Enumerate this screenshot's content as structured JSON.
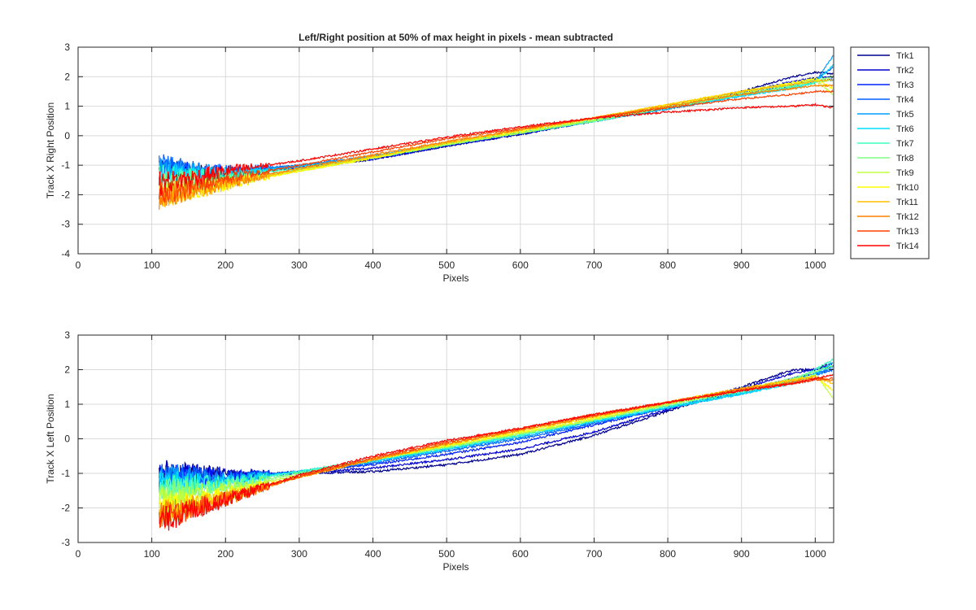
{
  "chart_data": [
    {
      "type": "line",
      "title": "Left/Right position at 50% of max height in pixels - mean subtracted",
      "xlabel": "Pixels",
      "ylabel": "Track X Right Position",
      "xlim": [
        0,
        1025
      ],
      "ylim": [
        -4,
        3
      ],
      "xticks": [
        0,
        100,
        200,
        300,
        400,
        500,
        600,
        700,
        800,
        900,
        1000
      ],
      "yticks": [
        -4,
        -3,
        -2,
        -1,
        0,
        1,
        2,
        3
      ],
      "grid": true,
      "legend": "outside-right",
      "x": [
        110,
        150,
        200,
        300,
        400,
        500,
        600,
        700,
        800,
        900,
        970,
        1000,
        1024
      ],
      "series": [
        {
          "name": "Trk1",
          "color": "#00008F",
          "values": [
            -1.2,
            -1.25,
            -1.25,
            -1.05,
            -0.8,
            -0.35,
            0.05,
            0.5,
            0.95,
            1.5,
            2.0,
            2.15,
            2.1
          ]
        },
        {
          "name": "Trk2",
          "color": "#0000CF",
          "values": [
            -1.2,
            -1.3,
            -1.3,
            -1.1,
            -0.8,
            -0.35,
            0.05,
            0.5,
            0.95,
            1.45,
            1.85,
            1.95,
            2.0
          ]
        },
        {
          "name": "Trk3",
          "color": "#0020FF",
          "values": [
            -1.1,
            -1.2,
            -1.25,
            -1.05,
            -0.75,
            -0.3,
            0.1,
            0.5,
            0.95,
            1.4,
            1.75,
            1.85,
            1.9
          ]
        },
        {
          "name": "Trk4",
          "color": "#0060FF",
          "values": [
            -1.0,
            -1.15,
            -1.2,
            -1.0,
            -0.7,
            -0.25,
            0.1,
            0.5,
            0.95,
            1.4,
            1.7,
            1.9,
            2.3
          ]
        },
        {
          "name": "Trk5",
          "color": "#00A0FF",
          "values": [
            -1.1,
            -1.2,
            -1.25,
            -1.0,
            -0.7,
            -0.25,
            0.1,
            0.5,
            0.9,
            1.35,
            1.65,
            1.8,
            2.7
          ]
        },
        {
          "name": "Trk6",
          "color": "#00E0FF",
          "values": [
            -1.3,
            -1.3,
            -1.3,
            -1.05,
            -0.75,
            -0.3,
            0.1,
            0.5,
            0.95,
            1.35,
            1.6,
            1.8,
            2.4
          ]
        },
        {
          "name": "Trk7",
          "color": "#40FFBF",
          "values": [
            -1.4,
            -1.4,
            -1.4,
            -1.1,
            -0.75,
            -0.3,
            0.1,
            0.5,
            0.95,
            1.4,
            1.65,
            1.8,
            1.9
          ]
        },
        {
          "name": "Trk8",
          "color": "#80FF80",
          "values": [
            -1.6,
            -1.5,
            -1.5,
            -1.15,
            -0.75,
            -0.3,
            0.1,
            0.5,
            0.95,
            1.4,
            1.7,
            1.85,
            2.0
          ]
        },
        {
          "name": "Trk9",
          "color": "#BFFF40",
          "values": [
            -1.9,
            -1.75,
            -1.6,
            -1.2,
            -0.75,
            -0.3,
            0.1,
            0.55,
            1.0,
            1.45,
            1.75,
            1.9,
            1.4
          ]
        },
        {
          "name": "Trk10",
          "color": "#FFFF00",
          "values": [
            -2.0,
            -1.85,
            -1.65,
            -1.2,
            -0.75,
            -0.25,
            0.15,
            0.6,
            1.05,
            1.5,
            1.8,
            1.95,
            1.6
          ]
        },
        {
          "name": "Trk11",
          "color": "#FFBF00",
          "values": [
            -2.1,
            -1.9,
            -1.65,
            -1.15,
            -0.7,
            -0.25,
            0.2,
            0.6,
            1.05,
            1.5,
            1.75,
            1.85,
            1.9
          ]
        },
        {
          "name": "Trk12",
          "color": "#FF8000",
          "values": [
            -2.1,
            -1.9,
            -1.6,
            -1.1,
            -0.65,
            -0.2,
            0.2,
            0.6,
            1.0,
            1.4,
            1.6,
            1.7,
            1.7
          ]
        },
        {
          "name": "Trk13",
          "color": "#FF4000",
          "values": [
            -2.0,
            -1.75,
            -1.45,
            -1.0,
            -0.55,
            -0.1,
            0.25,
            0.6,
            0.95,
            1.25,
            1.4,
            1.5,
            1.5
          ]
        },
        {
          "name": "Trk14",
          "color": "#FF0000",
          "values": [
            -1.6,
            -1.45,
            -1.2,
            -0.85,
            -0.45,
            -0.05,
            0.3,
            0.6,
            0.8,
            0.95,
            1.0,
            1.05,
            0.95
          ]
        }
      ]
    },
    {
      "type": "line",
      "title": "",
      "xlabel": "Pixels",
      "ylabel": "Track X Left Position",
      "xlim": [
        0,
        1025
      ],
      "ylim": [
        -3,
        3
      ],
      "xticks": [
        0,
        100,
        200,
        300,
        400,
        500,
        600,
        700,
        800,
        900,
        1000
      ],
      "yticks": [
        -3,
        -2,
        -1,
        0,
        1,
        2,
        3
      ],
      "grid": true,
      "x": [
        110,
        150,
        200,
        300,
        400,
        500,
        600,
        700,
        800,
        900,
        970,
        1000,
        1024
      ],
      "series": [
        {
          "name": "Trk1",
          "color": "#00008F",
          "values": [
            -1.0,
            -1.0,
            -1.05,
            -1.0,
            -0.95,
            -0.75,
            -0.45,
            0.1,
            0.8,
            1.5,
            2.0,
            2.0,
            2.2
          ]
        },
        {
          "name": "Trk2",
          "color": "#0000CF",
          "values": [
            -1.0,
            -1.0,
            -1.1,
            -1.0,
            -0.85,
            -0.6,
            -0.3,
            0.2,
            0.85,
            1.45,
            1.9,
            2.0,
            2.1
          ]
        },
        {
          "name": "Trk3",
          "color": "#0020FF",
          "values": [
            -1.05,
            -1.05,
            -1.1,
            -0.95,
            -0.75,
            -0.45,
            -0.1,
            0.4,
            0.9,
            1.35,
            1.75,
            1.9,
            2.0
          ]
        },
        {
          "name": "Trk4",
          "color": "#0060FF",
          "values": [
            -1.1,
            -1.1,
            -1.15,
            -0.95,
            -0.7,
            -0.35,
            0.0,
            0.45,
            0.9,
            1.35,
            1.7,
            1.85,
            2.0
          ]
        },
        {
          "name": "Trk5",
          "color": "#00A0FF",
          "values": [
            -1.15,
            -1.15,
            -1.2,
            -0.95,
            -0.65,
            -0.3,
            0.05,
            0.5,
            0.9,
            1.3,
            1.65,
            1.85,
            2.1
          ]
        },
        {
          "name": "Trk6",
          "color": "#00E0FF",
          "values": [
            -1.3,
            -1.3,
            -1.25,
            -0.95,
            -0.65,
            -0.3,
            0.1,
            0.5,
            0.9,
            1.3,
            1.6,
            1.9,
            2.2
          ]
        },
        {
          "name": "Trk7",
          "color": "#40FFBF",
          "values": [
            -1.4,
            -1.35,
            -1.3,
            -0.95,
            -0.6,
            -0.25,
            0.1,
            0.55,
            0.95,
            1.35,
            1.7,
            2.0,
            2.3
          ]
        },
        {
          "name": "Trk8",
          "color": "#80FF80",
          "values": [
            -1.55,
            -1.5,
            -1.4,
            -1.0,
            -0.6,
            -0.25,
            0.15,
            0.55,
            1.0,
            1.4,
            1.75,
            1.95,
            2.1
          ]
        },
        {
          "name": "Trk9",
          "color": "#BFFF40",
          "values": [
            -1.75,
            -1.65,
            -1.5,
            -1.05,
            -0.6,
            -0.2,
            0.15,
            0.55,
            1.0,
            1.4,
            1.7,
            1.85,
            1.2
          ]
        },
        {
          "name": "Trk10",
          "color": "#FFFF00",
          "values": [
            -1.95,
            -1.8,
            -1.6,
            -1.1,
            -0.6,
            -0.2,
            0.2,
            0.6,
            1.05,
            1.45,
            1.7,
            1.8,
            1.4
          ]
        },
        {
          "name": "Trk11",
          "color": "#FFBF00",
          "values": [
            -2.1,
            -1.95,
            -1.7,
            -1.1,
            -0.6,
            -0.15,
            0.25,
            0.65,
            1.05,
            1.45,
            1.7,
            1.8,
            1.6
          ]
        },
        {
          "name": "Trk12",
          "color": "#FF8000",
          "values": [
            -2.2,
            -2.0,
            -1.75,
            -1.1,
            -0.6,
            -0.15,
            0.25,
            0.65,
            1.05,
            1.45,
            1.65,
            1.75,
            1.7
          ]
        },
        {
          "name": "Trk13",
          "color": "#FF4000",
          "values": [
            -2.3,
            -2.05,
            -1.75,
            -1.1,
            -0.55,
            -0.1,
            0.3,
            0.7,
            1.05,
            1.4,
            1.6,
            1.7,
            1.75
          ]
        },
        {
          "name": "Trk14",
          "color": "#FF0000",
          "values": [
            -2.4,
            -2.1,
            -1.75,
            -1.05,
            -0.5,
            -0.05,
            0.3,
            0.7,
            1.05,
            1.4,
            1.6,
            1.75,
            1.85
          ]
        }
      ]
    }
  ]
}
